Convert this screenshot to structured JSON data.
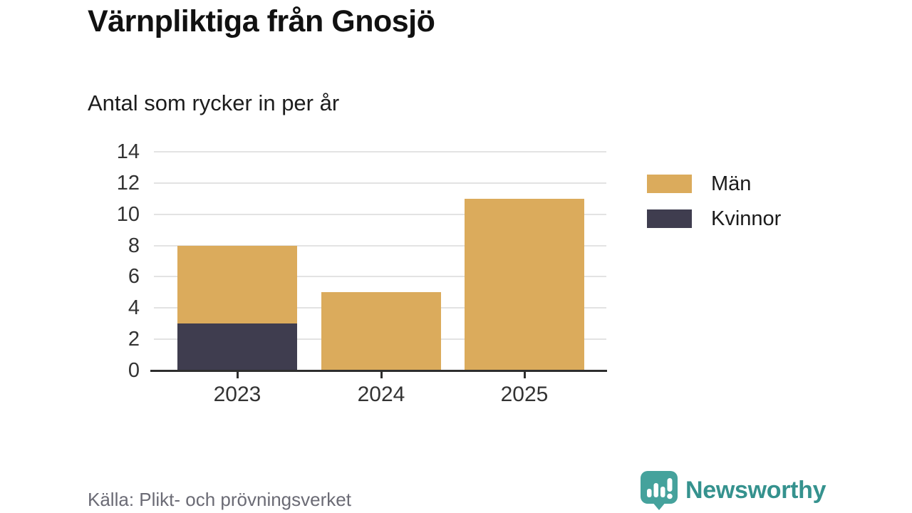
{
  "chart_data": {
    "type": "bar",
    "stacked": true,
    "title": "Värnpliktiga från Gnosjö",
    "subtitle": "Antal som rycker in per år",
    "categories": [
      "2023",
      "2024",
      "2025"
    ],
    "series": [
      {
        "name": "Män",
        "color": "#DBAB5C",
        "values": [
          5,
          5,
          11
        ]
      },
      {
        "name": "Kvinnor",
        "color": "#3F3D4F",
        "values": [
          3,
          0,
          0
        ]
      }
    ],
    "stack_order": [
      "Kvinnor",
      "Män"
    ],
    "totals": [
      8,
      5,
      11
    ],
    "ylim": [
      0,
      14
    ],
    "yticks": [
      0,
      2,
      4,
      6,
      8,
      10,
      12,
      14
    ],
    "grid": "horizontal",
    "legend_position": "right"
  },
  "footer": {
    "source": "Källa: Plikt- och prövningsverket",
    "brand": "Newsworthy"
  },
  "colors": {
    "bar_men": "#DBAB5C",
    "bar_women": "#3F3D4F",
    "gridline": "#e3e3e3",
    "axis": "#2e2e2e",
    "brand_teal": "#35928e",
    "logo_teal": "#45a29c",
    "source_gray": "#6b6b75"
  }
}
